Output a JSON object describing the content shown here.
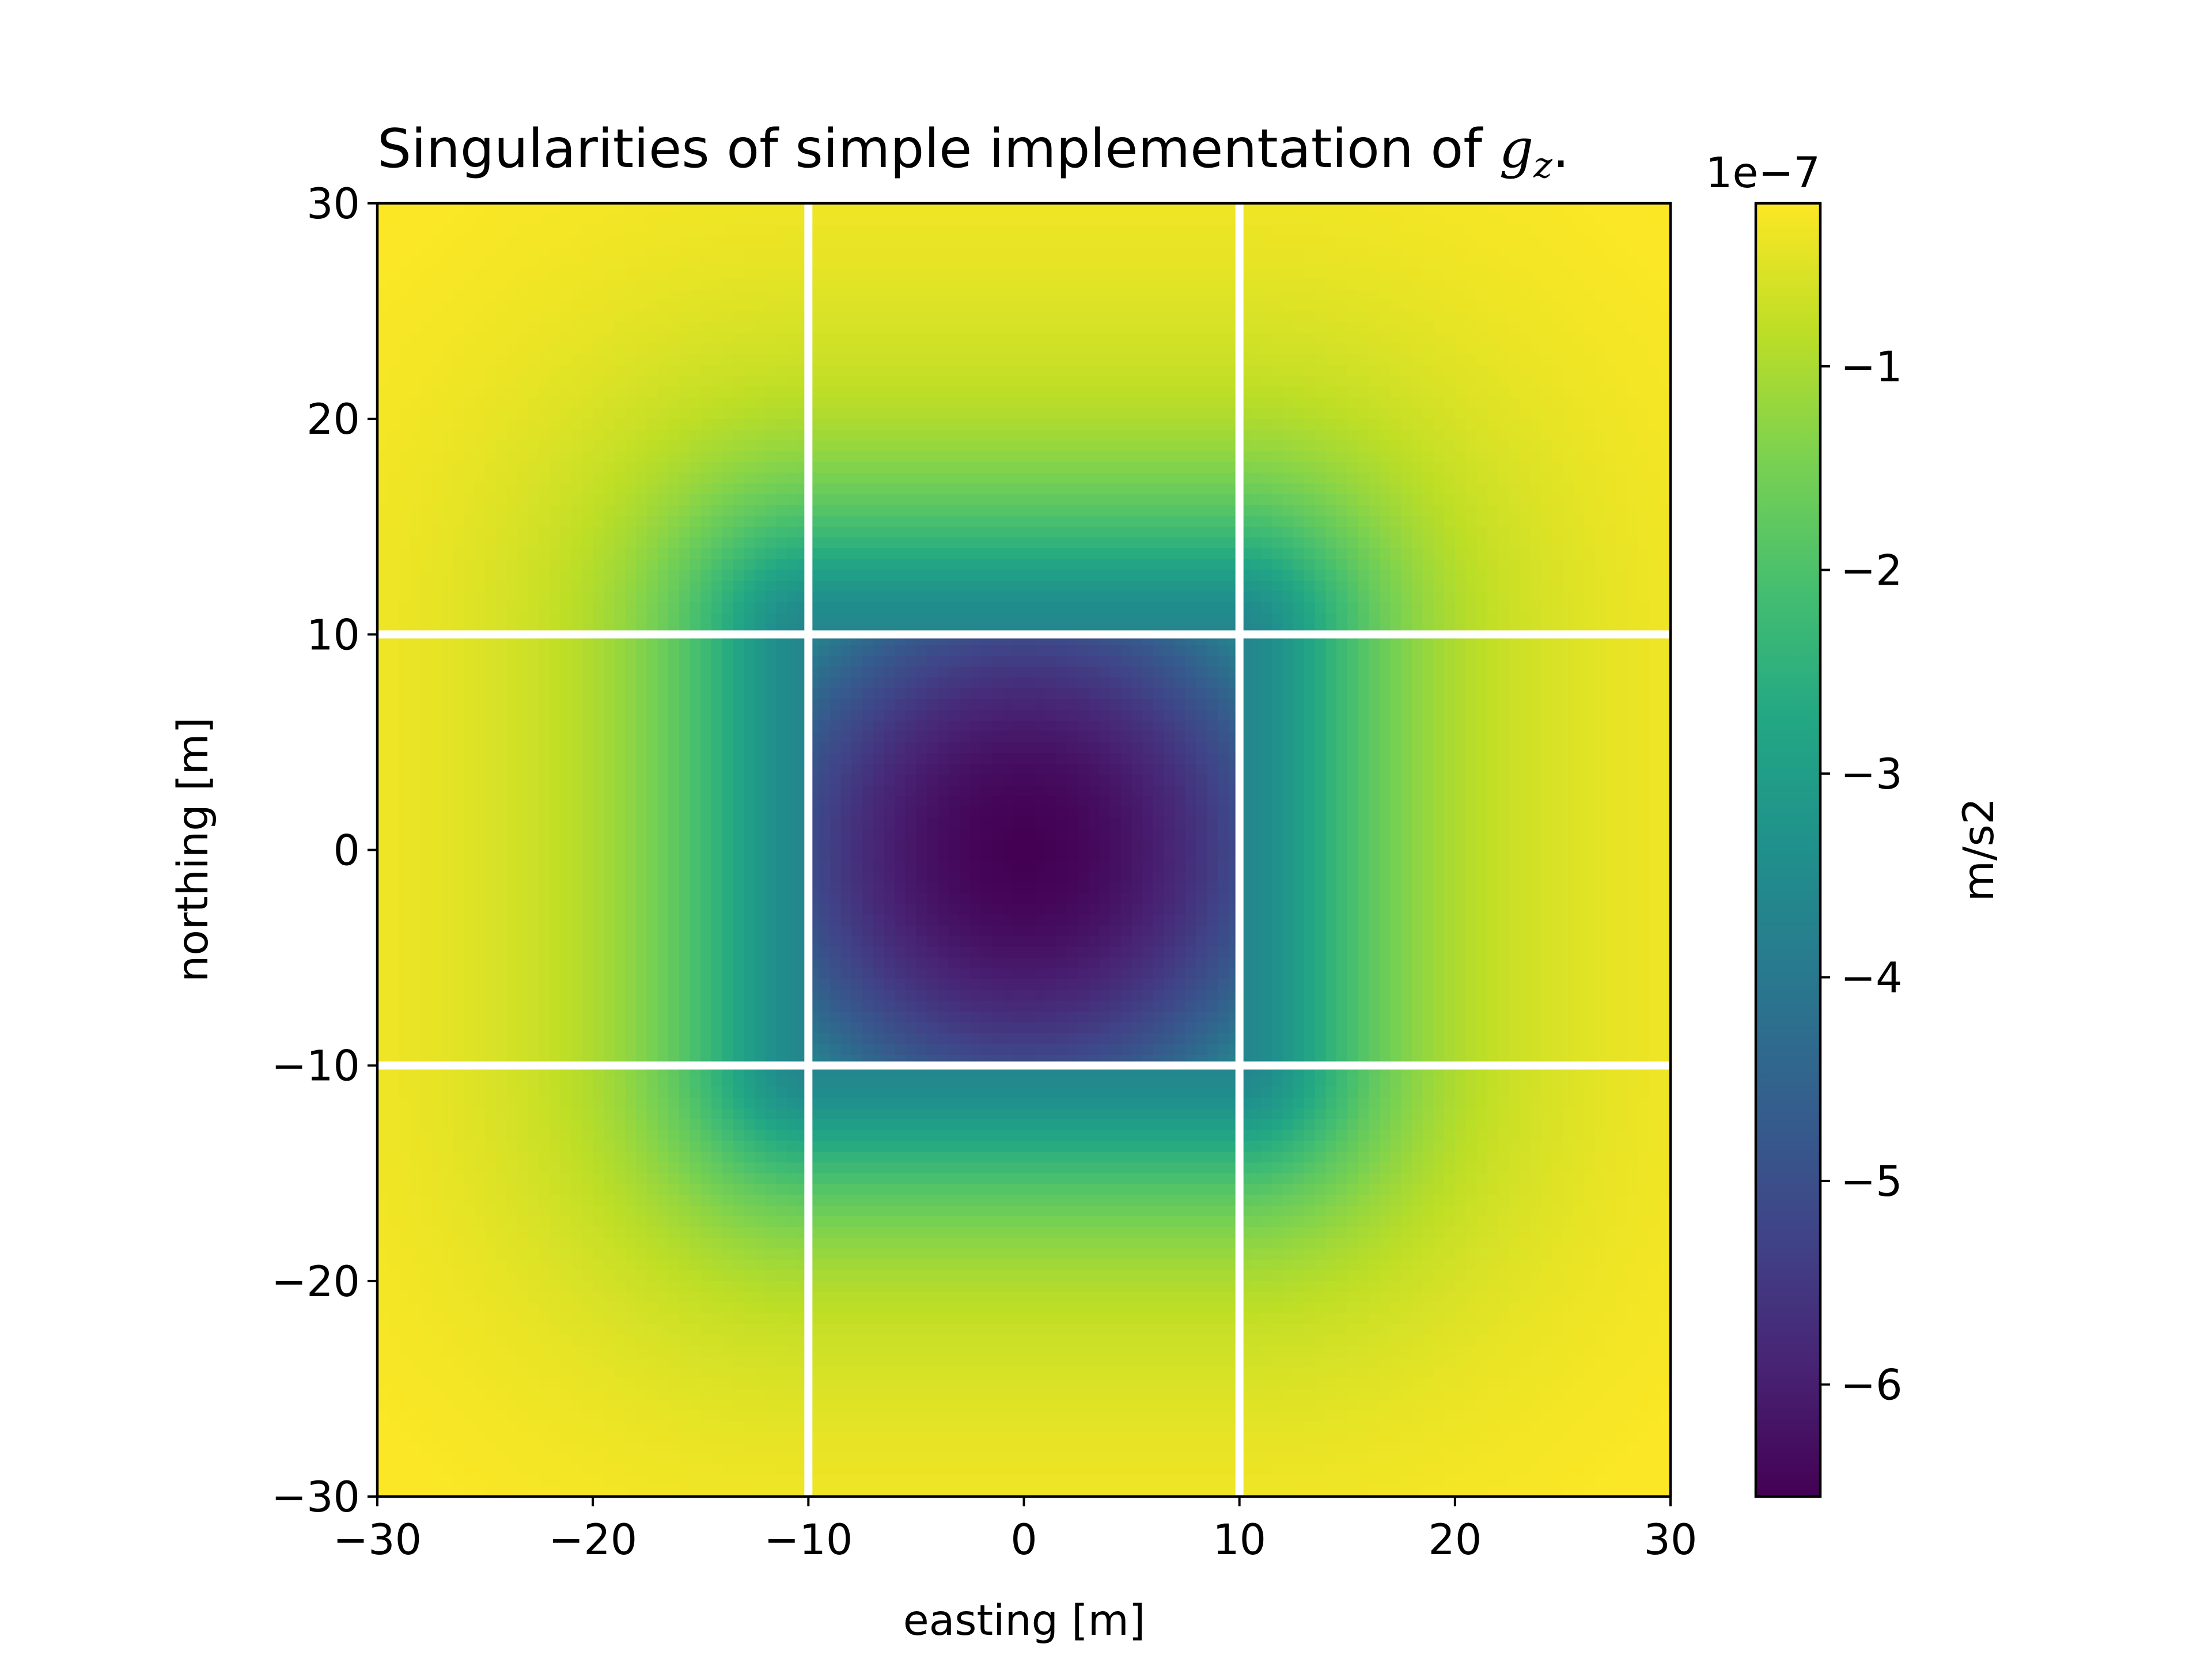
{
  "chart_data": {
    "type": "heatmap",
    "title": "Singularities of simple implementation of ",
    "title_math": "g",
    "title_math_sub": "z",
    "title_suffix": ".",
    "xlabel": "easting [m]",
    "ylabel": "northing [m]",
    "xlim": [
      -30,
      30
    ],
    "ylim": [
      -30,
      30
    ],
    "x_ticks": [
      -30,
      -20,
      -10,
      0,
      10,
      20,
      30
    ],
    "y_ticks": [
      -30,
      -20,
      -10,
      0,
      10,
      20,
      30
    ],
    "x_tick_labels": [
      "−30",
      "−20",
      "−10",
      "0",
      "10",
      "20",
      "30"
    ],
    "y_tick_labels": [
      "−30",
      "−20",
      "−10",
      "0",
      "10",
      "20",
      "30"
    ],
    "colorbar": {
      "label": "m/s2",
      "offset_text": "1e−7",
      "vmin": -6.55,
      "vmax": -0.2,
      "ticks": [
        -1,
        -2,
        -3,
        -4,
        -5,
        -6
      ],
      "tick_labels": [
        "−1",
        "−2",
        "−3",
        "−4",
        "−5",
        "−6"
      ],
      "colormap": "viridis"
    },
    "singular_lines": {
      "x": [
        -10,
        10
      ],
      "y": [
        -10,
        10
      ],
      "color": "#ffffff"
    },
    "field": {
      "description_units": "gz in units of 1e-7 m/s2",
      "center_value": -6.55,
      "corner_value": -0.2,
      "prism_half_width": 10
    }
  }
}
